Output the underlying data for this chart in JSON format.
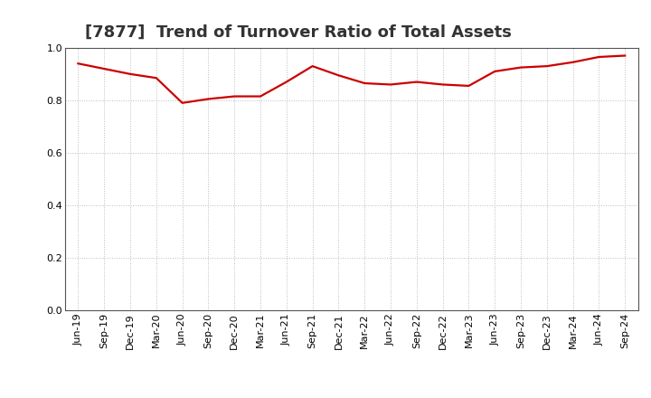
{
  "title": "[7877]  Trend of Turnover Ratio of Total Assets",
  "x_labels": [
    "Jun-19",
    "Sep-19",
    "Dec-19",
    "Mar-20",
    "Jun-20",
    "Sep-20",
    "Dec-20",
    "Mar-21",
    "Jun-21",
    "Sep-21",
    "Dec-21",
    "Mar-22",
    "Jun-22",
    "Sep-22",
    "Dec-22",
    "Mar-23",
    "Jun-23",
    "Sep-23",
    "Dec-23",
    "Mar-24",
    "Jun-24",
    "Sep-24"
  ],
  "values": [
    0.94,
    0.92,
    0.9,
    0.885,
    0.79,
    0.805,
    0.815,
    0.815,
    0.87,
    0.93,
    0.895,
    0.865,
    0.86,
    0.87,
    0.86,
    0.855,
    0.91,
    0.925,
    0.93,
    0.945,
    0.965,
    0.97
  ],
  "ylim": [
    0.0,
    1.0
  ],
  "yticks": [
    0.0,
    0.2,
    0.4,
    0.6,
    0.8,
    1.0
  ],
  "line_color": "#CC0000",
  "line_width": 1.6,
  "grid_color": "#BBBBBB",
  "bg_color": "#FFFFFF",
  "title_fontsize": 13,
  "tick_fontsize": 8,
  "title_color": "#333333"
}
